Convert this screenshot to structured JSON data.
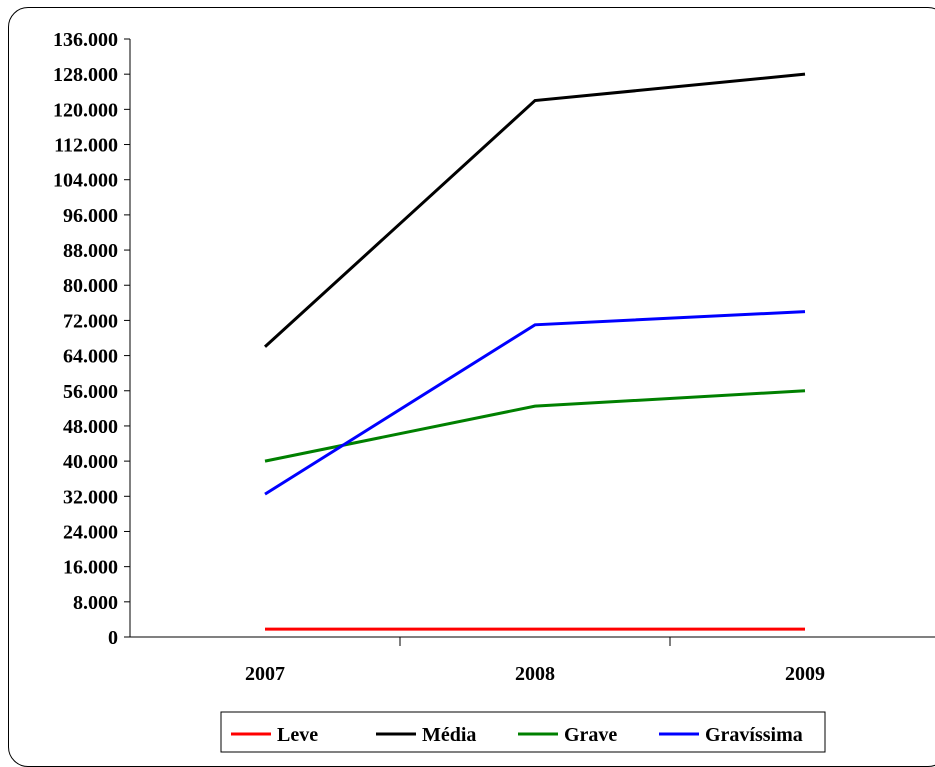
{
  "chart_data": {
    "type": "line",
    "categories": [
      "2007",
      "2008",
      "2009"
    ],
    "ylim": [
      0,
      136000
    ],
    "y_ticks": [
      0,
      8000,
      16000,
      24000,
      32000,
      40000,
      48000,
      56000,
      64000,
      72000,
      80000,
      88000,
      96000,
      104000,
      112000,
      120000,
      128000,
      136000
    ],
    "y_tick_labels": [
      "0",
      "8.000",
      "16.000",
      "24.000",
      "32.000",
      "40.000",
      "48.000",
      "56.000",
      "64.000",
      "72.000",
      "80.000",
      "88.000",
      "96.000",
      "104.000",
      "112.000",
      "120.000",
      "128.000",
      "136.000"
    ],
    "grid": false,
    "legend_position": "bottom",
    "series": [
      {
        "name": "Leve",
        "color": "#ff0000",
        "values": [
          1800,
          1800,
          1800
        ]
      },
      {
        "name": "Média",
        "color": "#000000",
        "values": [
          66000,
          122000,
          128000
        ]
      },
      {
        "name": "Grave",
        "color": "#008000",
        "values": [
          40000,
          52500,
          56000
        ]
      },
      {
        "name": "Gravíssima",
        "color": "#0000ff",
        "values": [
          32500,
          71000,
          74000
        ]
      }
    ]
  }
}
